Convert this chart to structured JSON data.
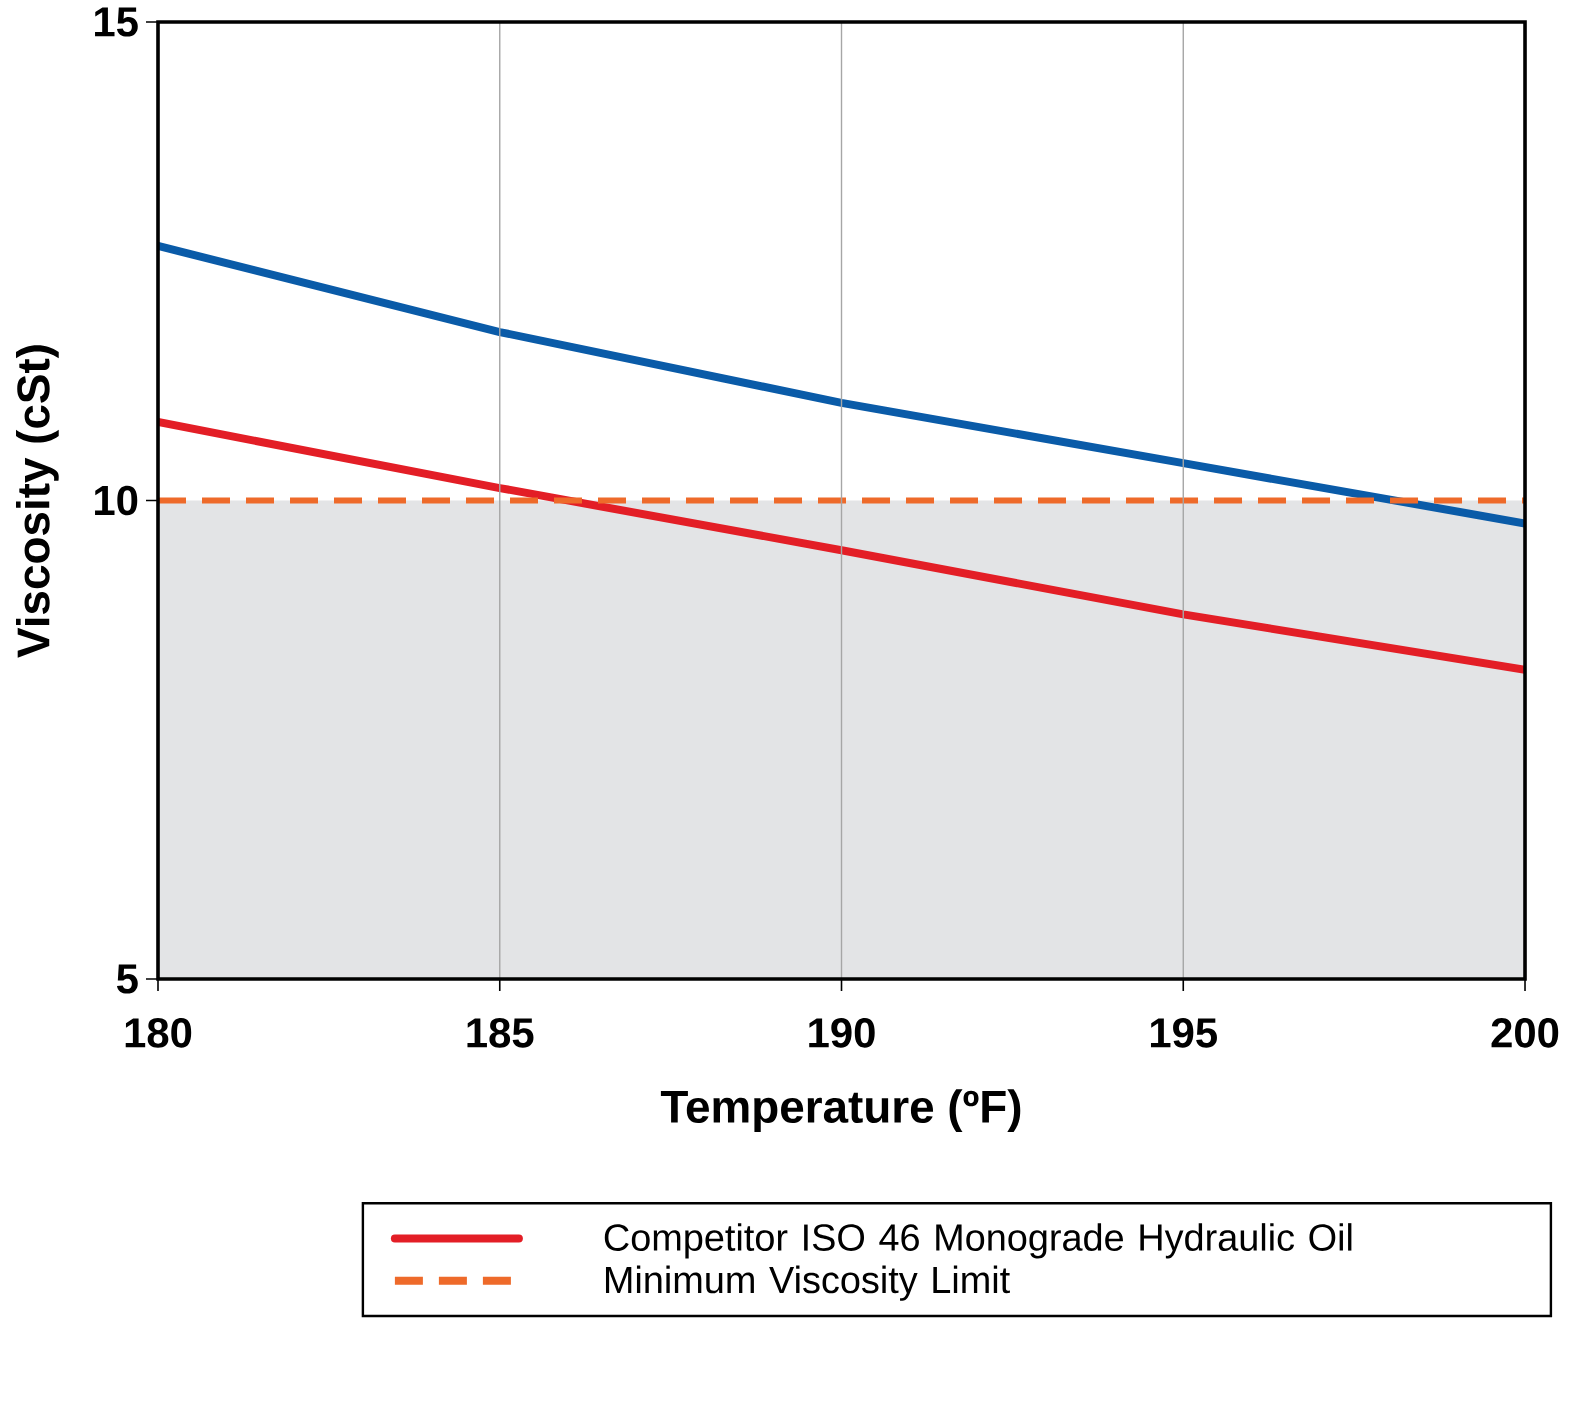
{
  "chart_data": {
    "type": "line",
    "xlabel": "Temperature (ºF)",
    "ylabel": "Viscosity (cSt)",
    "x": [
      180,
      185,
      190,
      195,
      200
    ],
    "series": [
      {
        "color": "#0a5ba8",
        "values": [
          12.66,
          11.76,
          11.02,
          10.39,
          9.76
        ]
      },
      {
        "name": "Competitor ISO 46 Monograde Hydraulic Oil",
        "color": "#e31e26",
        "values": [
          10.82,
          10.13,
          9.48,
          8.81,
          8.23
        ]
      }
    ],
    "ref_lines": [
      {
        "axis": "y",
        "value": 10,
        "label": "Minimum Viscosity Limit",
        "color": "#ee6a2a",
        "line_style": "dashed"
      }
    ],
    "bands": [
      {
        "axis": "y",
        "from": 5,
        "to": 10,
        "color": "#e3e4e6"
      }
    ],
    "xlim": [
      180,
      200
    ],
    "ylim": [
      5,
      15
    ],
    "xticks": [
      180,
      185,
      190,
      195,
      200
    ],
    "yticks": [
      5,
      10,
      15
    ],
    "grid": "x",
    "legend": "bottom",
    "marker": "none",
    "line_style": "solid"
  }
}
